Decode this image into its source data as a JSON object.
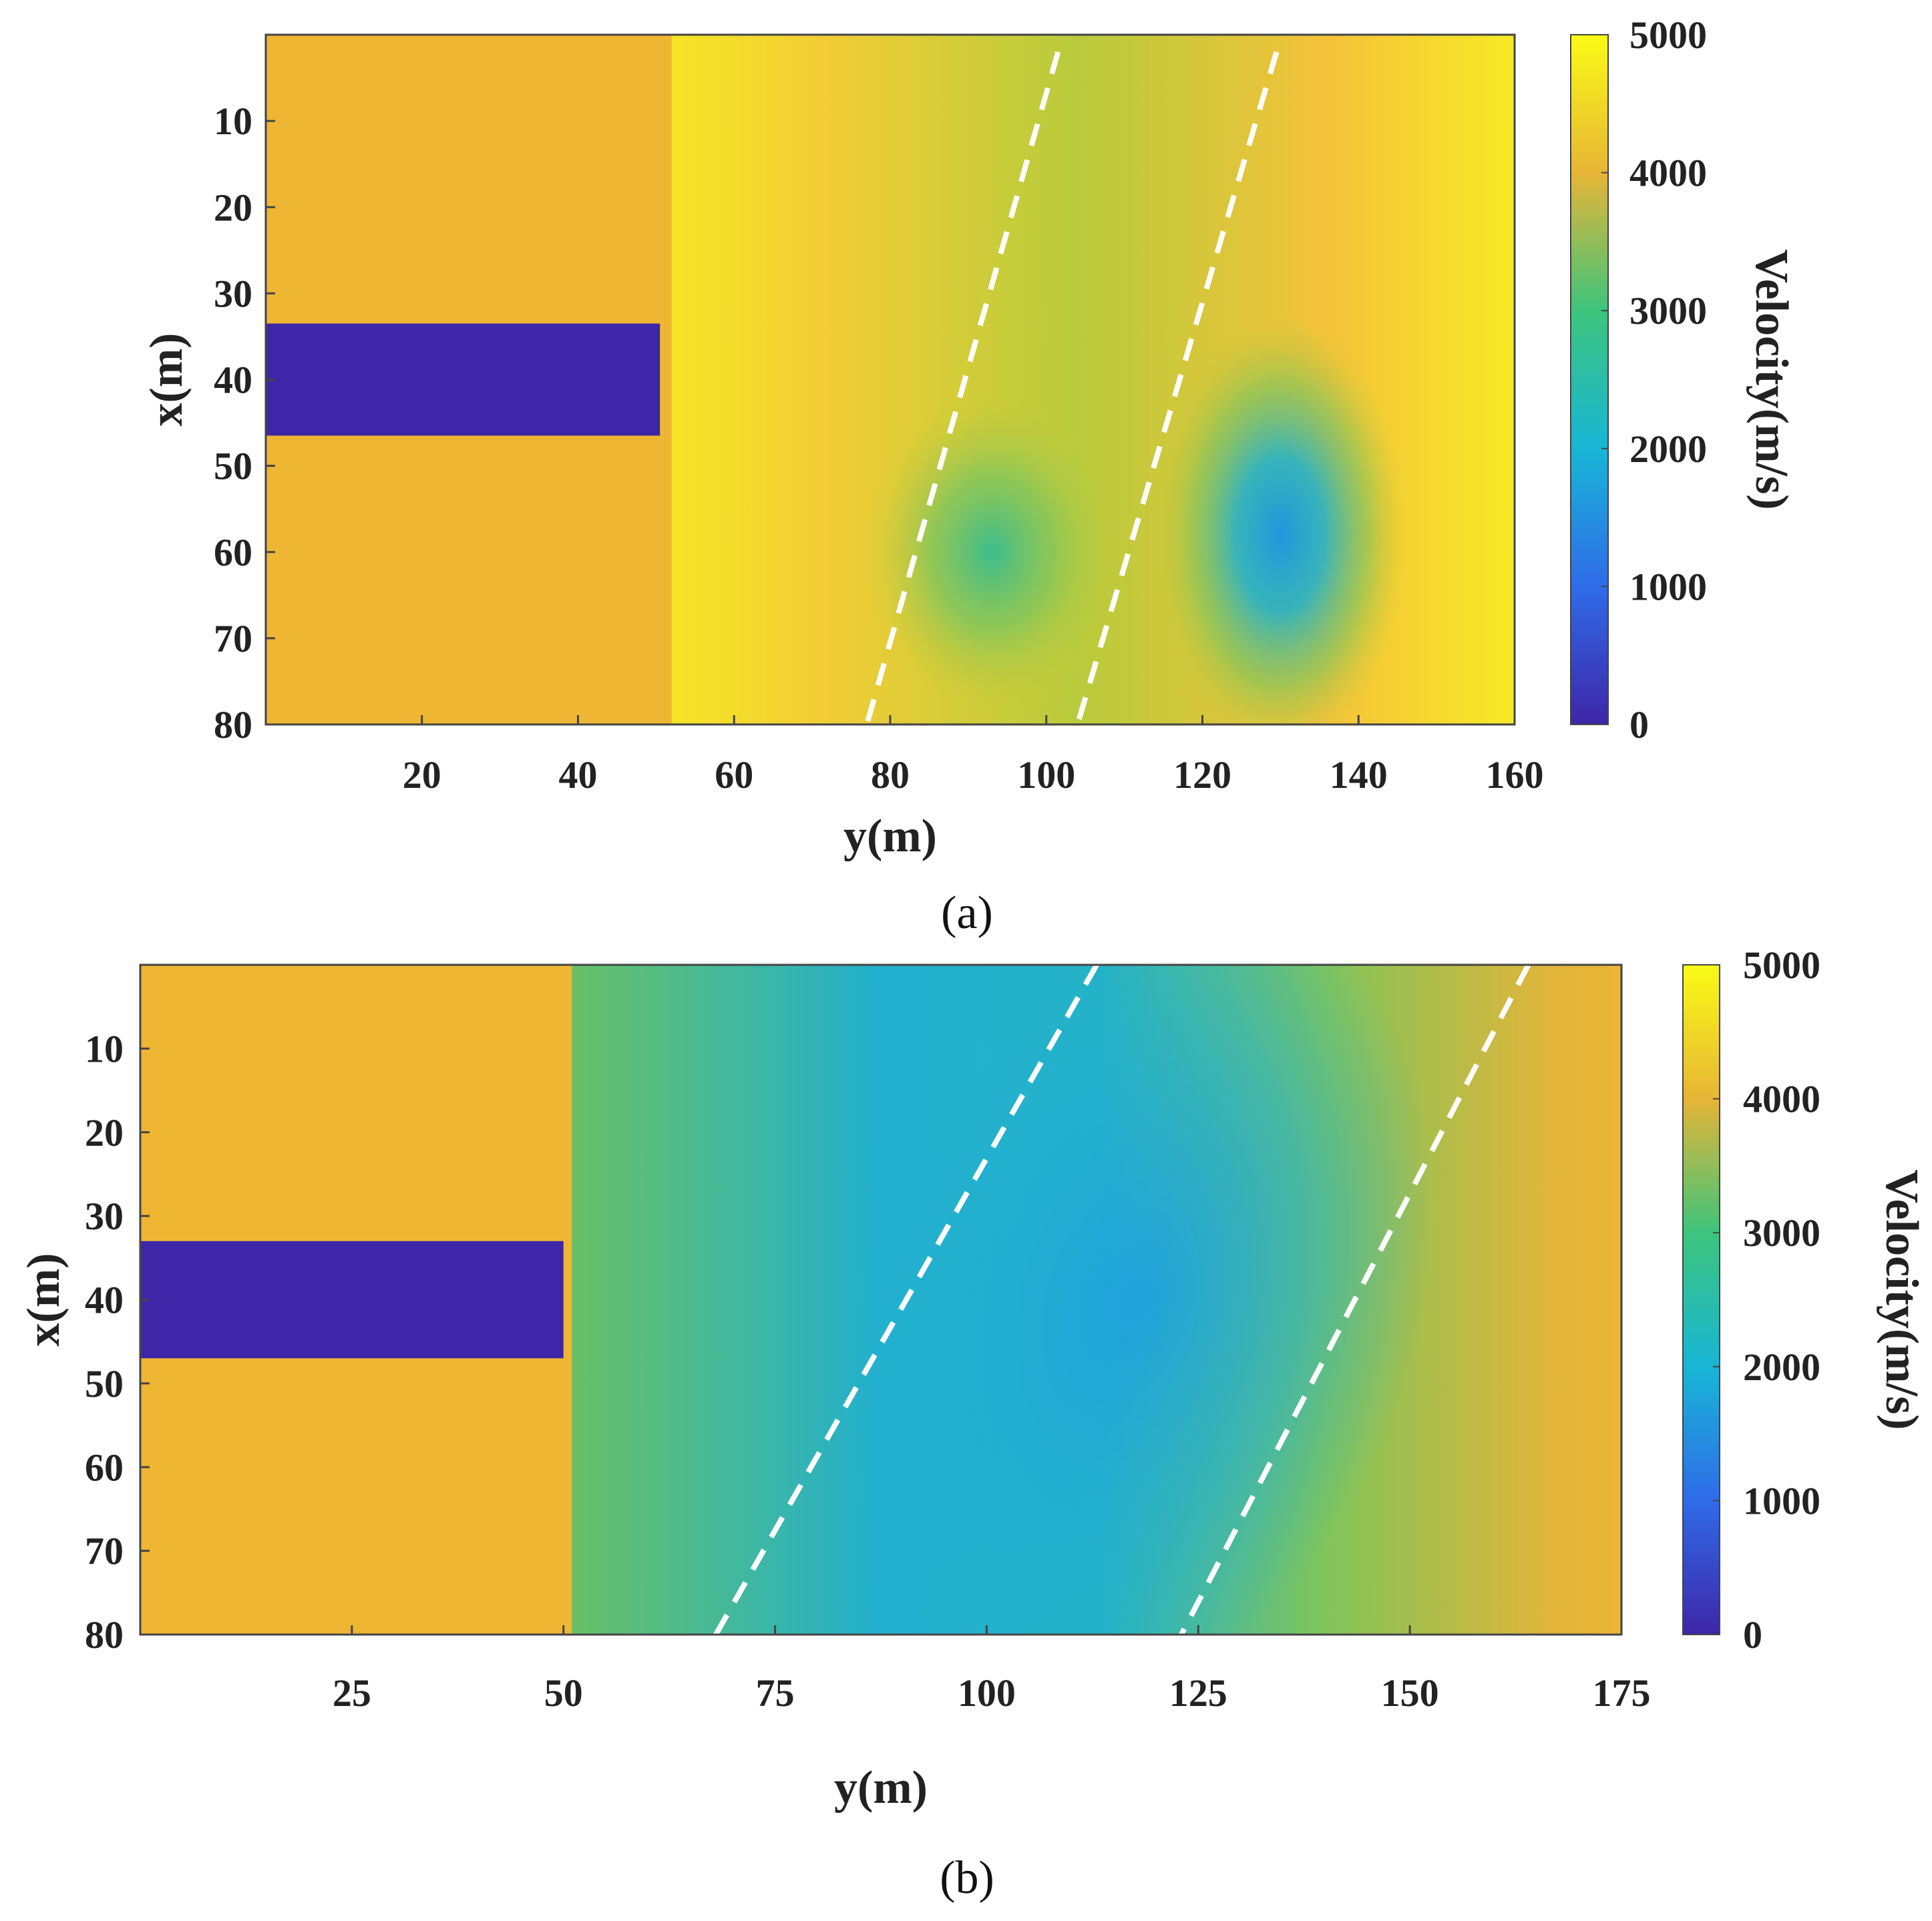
{
  "chart_data": [
    {
      "type": "heatmap",
      "panel": "a",
      "panel_label": "(a)",
      "xlabel": "y(m)",
      "ylabel": "x(m)",
      "xlim": [
        0,
        160
      ],
      "ylim": [
        0,
        80
      ],
      "x_ticks": [
        20,
        40,
        60,
        80,
        100,
        120,
        140,
        160
      ],
      "y_ticks": [
        10,
        20,
        30,
        40,
        50,
        60,
        70,
        80
      ],
      "y_axis_reversed": true,
      "colorbar": {
        "label": "Velocity(m/s)",
        "range": [
          0,
          5000
        ],
        "ticks": [
          0,
          1000,
          2000,
          3000,
          4000,
          5000
        ]
      },
      "regions": [
        {
          "name": "background",
          "y_range": [
            0,
            52
          ],
          "x_range": [
            0,
            80
          ],
          "velocity": 4200
        },
        {
          "name": "tunnel",
          "y_range": [
            0,
            50.5
          ],
          "x_range": [
            33.5,
            46.5
          ],
          "velocity": 0
        }
      ],
      "anomalies": [
        {
          "name": "low-velocity-1",
          "center_y": 93,
          "center_x": 60,
          "velocity": 2900
        },
        {
          "name": "low-velocity-2",
          "center_y": 130,
          "center_x": 58,
          "velocity": 2000
        }
      ],
      "dashed_lines": [
        {
          "points": [
            [
              101.5,
              2
            ],
            [
              77,
              80
            ]
          ]
        },
        {
          "points": [
            [
              129.5,
              2
            ],
            [
              104,
              80
            ]
          ]
        }
      ]
    },
    {
      "type": "heatmap",
      "panel": "b",
      "panel_label": "(b)",
      "xlabel": "y(m)",
      "ylabel": "x(m)",
      "xlim": [
        0,
        175
      ],
      "ylim": [
        0,
        80
      ],
      "x_ticks": [
        25,
        50,
        75,
        100,
        125,
        150,
        175
      ],
      "y_ticks": [
        10,
        20,
        30,
        40,
        50,
        60,
        70,
        80
      ],
      "y_axis_reversed": true,
      "colorbar": {
        "label": "Velocity(m/s)",
        "range": [
          0,
          5000
        ],
        "ticks": [
          0,
          1000,
          2000,
          3000,
          4000,
          5000
        ]
      },
      "regions": [
        {
          "name": "background",
          "y_range": [
            0,
            51
          ],
          "x_range": [
            0,
            80
          ],
          "velocity": 4200
        },
        {
          "name": "tunnel",
          "y_range": [
            0,
            50
          ],
          "x_range": [
            33,
            47
          ],
          "velocity": 0
        }
      ],
      "anomalies": [
        {
          "name": "low-velocity-band",
          "center_y": 118,
          "center_x": 40,
          "velocity": 2200
        }
      ],
      "dashed_lines": [
        {
          "points": [
            [
              113,
              0
            ],
            [
              68,
              80
            ]
          ]
        },
        {
          "points": [
            [
              164,
              0
            ],
            [
              123,
              80
            ]
          ]
        }
      ]
    }
  ]
}
